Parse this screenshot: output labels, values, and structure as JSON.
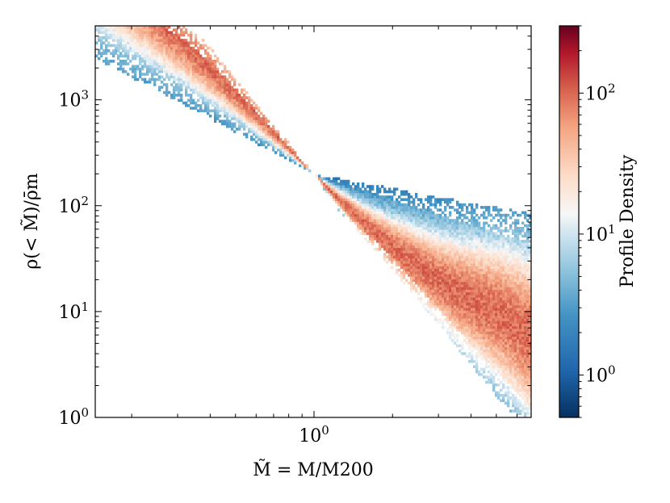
{
  "chart_data": {
    "type": "heatmap",
    "title": "",
    "xlabel": "M̃ = M/M200",
    "ylabel": "ρ(< M̃)/ρ̄m",
    "xscale": "log",
    "yscale": "log",
    "xlim": [
      0.145,
      6.8
    ],
    "ylim": [
      1,
      5000
    ],
    "x_ticks": [
      {
        "value": 1,
        "label": "10",
        "exp": "0"
      }
    ],
    "y_ticks": [
      {
        "value": 1,
        "label": "10",
        "exp": "0"
      },
      {
        "value": 10,
        "label": "10",
        "exp": "1"
      },
      {
        "value": 100,
        "label": "10",
        "exp": "2"
      },
      {
        "value": 1000,
        "label": "10",
        "exp": "3"
      }
    ],
    "pivot": {
      "x": 1.0,
      "y": 200
    },
    "ridge_slope": -2.6,
    "inner_slope_range": [
      -1.3,
      -3.0
    ],
    "outer_slope_range": [
      -0.45,
      -3.0
    ],
    "colorbar": {
      "label": "Profile Density",
      "scale": "log",
      "range": [
        0.5,
        300
      ],
      "colormap": "RdBu_r",
      "ticks": [
        {
          "value": 1,
          "label": "10",
          "exp": "0"
        },
        {
          "value": 10,
          "label": "10",
          "exp": "1"
        },
        {
          "value": 100,
          "label": "10",
          "exp": "2"
        }
      ]
    },
    "colors": {
      "low": "#053061",
      "mid": "#f7f7f7",
      "high": "#67001f"
    }
  }
}
